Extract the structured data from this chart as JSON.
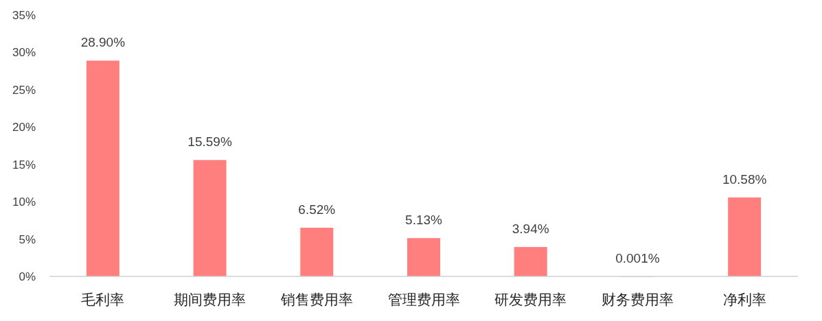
{
  "chart_data": {
    "type": "bar",
    "categories": [
      "毛利率",
      "期间费用率",
      "销售费用率",
      "管理费用率",
      "研发费用率",
      "财务费用率",
      "净利率"
    ],
    "values": [
      28.9,
      15.59,
      6.52,
      5.13,
      3.94,
      0.001,
      10.58
    ],
    "value_labels": [
      "28.90%",
      "15.59%",
      "6.52%",
      "5.13%",
      "3.94%",
      "0.001%",
      "10.58%"
    ],
    "color": "#ff7f7f",
    "ylim": [
      0,
      35
    ],
    "yticks": [
      {
        "value": 0,
        "label": "0%"
      },
      {
        "value": 5,
        "label": "5%"
      },
      {
        "value": 10,
        "label": "10%"
      },
      {
        "value": 15,
        "label": "15%"
      },
      {
        "value": 20,
        "label": "20%"
      },
      {
        "value": 25,
        "label": "25%"
      },
      {
        "value": 30,
        "label": "30%"
      },
      {
        "value": 35,
        "label": "35%"
      }
    ]
  }
}
